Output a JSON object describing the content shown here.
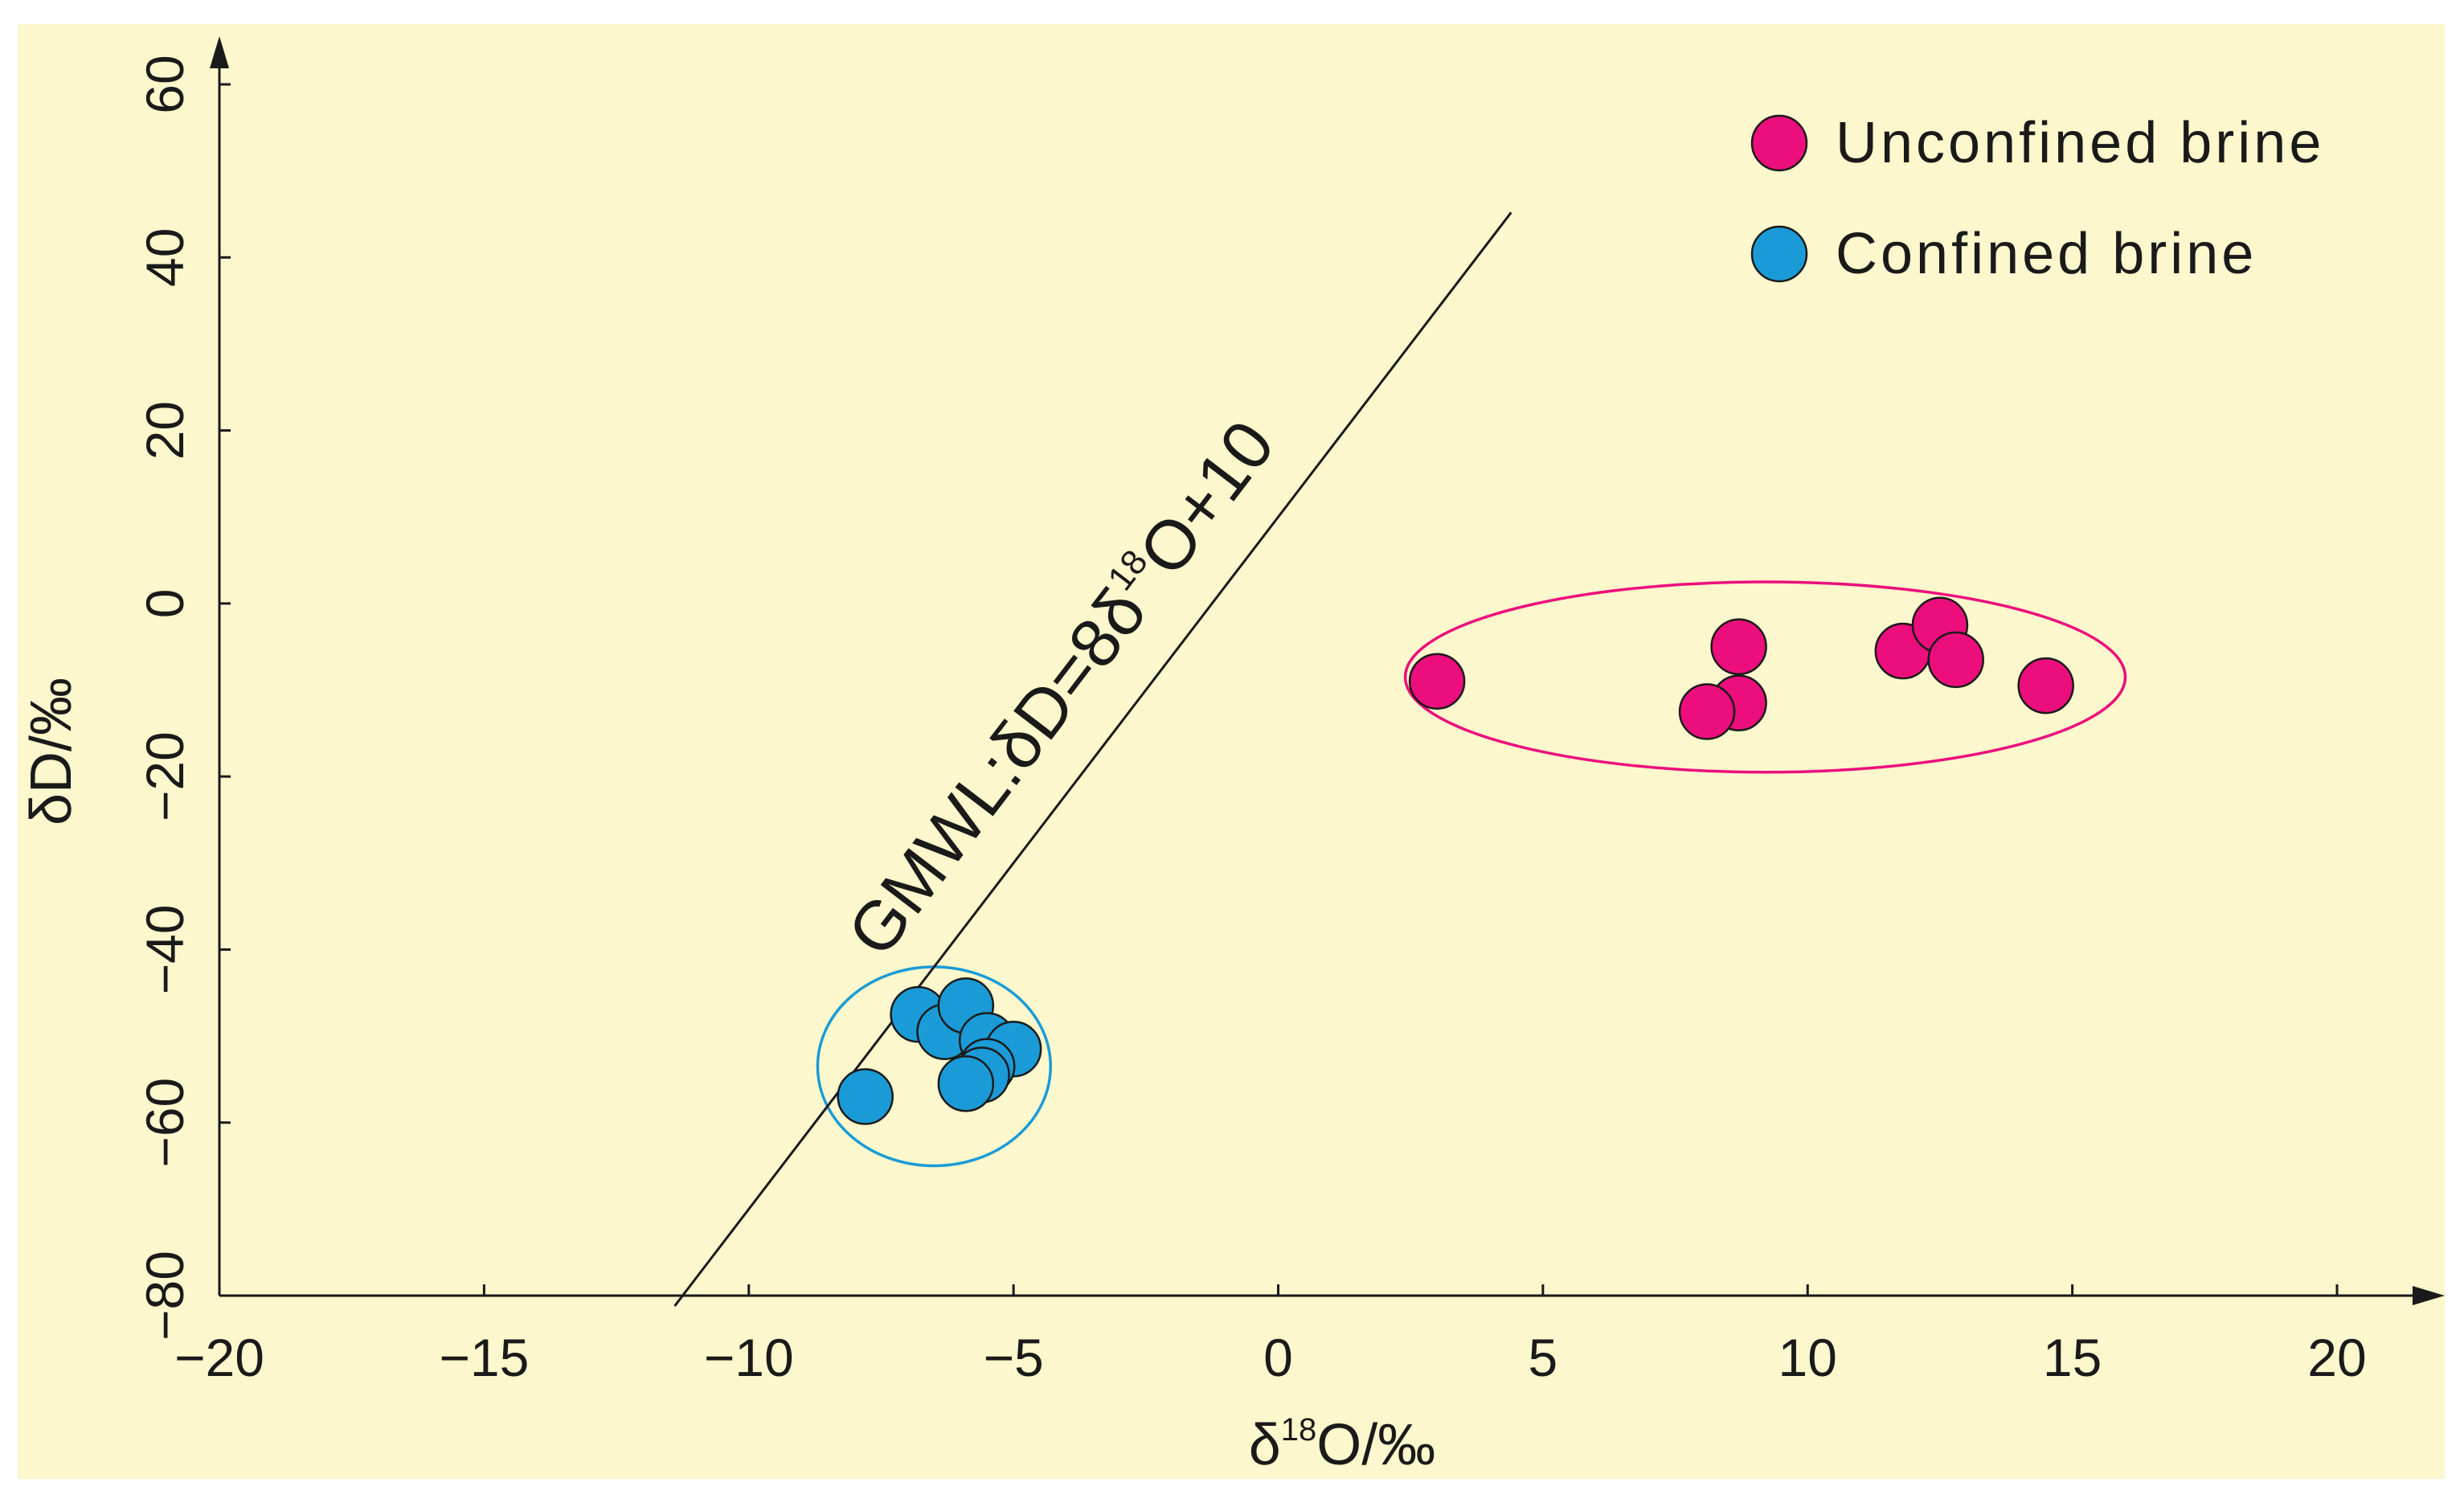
{
  "chart_data": {
    "type": "scatter",
    "title": "",
    "background": "#fcf7cc",
    "xlabel": {
      "prefix": "δ",
      "sup": "18",
      "suffix": "O/‰"
    },
    "ylabel": "δD/‰",
    "xlim": [
      -20,
      20
    ],
    "ylim": [
      -80,
      60
    ],
    "xticks": [
      -20,
      -15,
      -10,
      -5,
      0,
      5,
      10,
      15,
      20
    ],
    "yticks": [
      -80,
      -60,
      -40,
      -20,
      0,
      20,
      40,
      60
    ],
    "xtick_labels": [
      "−20",
      "−15",
      "−10",
      "−5",
      "0",
      "5",
      "10",
      "15",
      "20"
    ],
    "ytick_labels": [
      "−80",
      "−60",
      "−40",
      "−20",
      "0",
      "20",
      "40",
      "60"
    ],
    "grid": false,
    "legend_position": "top-right",
    "series": [
      {
        "name": "Unconfined brine",
        "color": "#ec0e7c",
        "points": [
          {
            "x": 3.0,
            "y": -9.0
          },
          {
            "x": 8.7,
            "y": -5.0
          },
          {
            "x": 8.7,
            "y": -11.5
          },
          {
            "x": 8.1,
            "y": -12.5
          },
          {
            "x": 11.8,
            "y": -5.5
          },
          {
            "x": 12.5,
            "y": -2.5
          },
          {
            "x": 12.8,
            "y": -6.5
          },
          {
            "x": 14.5,
            "y": -9.5
          }
        ]
      },
      {
        "name": "Confined brine",
        "color": "#1a9bd7",
        "points": [
          {
            "x": -7.8,
            "y": -57.0
          },
          {
            "x": -6.8,
            "y": -47.5
          },
          {
            "x": -6.3,
            "y": -49.5
          },
          {
            "x": -5.9,
            "y": -46.5
          },
          {
            "x": -5.5,
            "y": -50.5
          },
          {
            "x": -5.0,
            "y": -51.5
          },
          {
            "x": -5.5,
            "y": -53.5
          },
          {
            "x": -5.6,
            "y": -54.5
          },
          {
            "x": -5.9,
            "y": -55.5
          }
        ]
      }
    ],
    "groups": [
      {
        "series": "Unconfined brine",
        "color": "#ec0e7c",
        "center": [
          9.2,
          -8.5
        ],
        "radius": [
          6.8,
          11.0
        ]
      },
      {
        "series": "Confined brine",
        "color": "#1a9bd7",
        "center": [
          -6.5,
          -53.5
        ],
        "radius": [
          2.2,
          11.5
        ]
      }
    ],
    "reference_line": {
      "label": {
        "prefix": "GMWL:δD=8δ",
        "sup": "18",
        "suffix": "O+10"
      },
      "equation": "δD = 8·δ18O + 10",
      "x_range": [
        -11.4,
        4.4
      ],
      "color": "#1a1a1a"
    }
  }
}
